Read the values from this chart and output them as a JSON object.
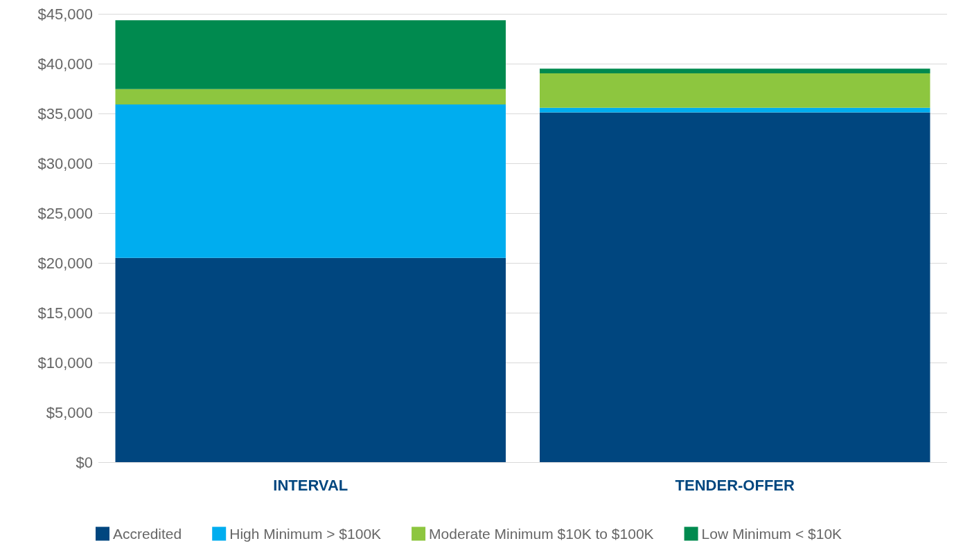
{
  "chart_data": {
    "type": "bar",
    "stacked": true,
    "categories": [
      "INTERVAL",
      "TENDER-OFFER"
    ],
    "series": [
      {
        "name": "Accredited",
        "color": "#00467f",
        "values": [
          20500,
          35100
        ]
      },
      {
        "name": "High Minimum > $100K",
        "color": "#00adef",
        "values": [
          15400,
          470
        ]
      },
      {
        "name": "Moderate Minimum $10K to $100K",
        "color": "#8dc63f",
        "values": [
          1550,
          3450
        ]
      },
      {
        "name": "Low Minimum < $10K",
        "color": "#008a4f",
        "values": [
          6900,
          470
        ]
      }
    ],
    "ylim": [
      0,
      45000
    ],
    "yticks": [
      {
        "value": 0,
        "label": "$0"
      },
      {
        "value": 5000,
        "label": "$5,000"
      },
      {
        "value": 10000,
        "label": "$10,000"
      },
      {
        "value": 15000,
        "label": "$15,000"
      },
      {
        "value": 20000,
        "label": "$20,000"
      },
      {
        "value": 25000,
        "label": "$25,000"
      },
      {
        "value": 30000,
        "label": "$30,000"
      },
      {
        "value": 35000,
        "label": "$35,000"
      },
      {
        "value": 40000,
        "label": "$40,000"
      },
      {
        "value": 45000,
        "label": "$45,000"
      }
    ],
    "grid": "y",
    "legend": "bottom"
  }
}
